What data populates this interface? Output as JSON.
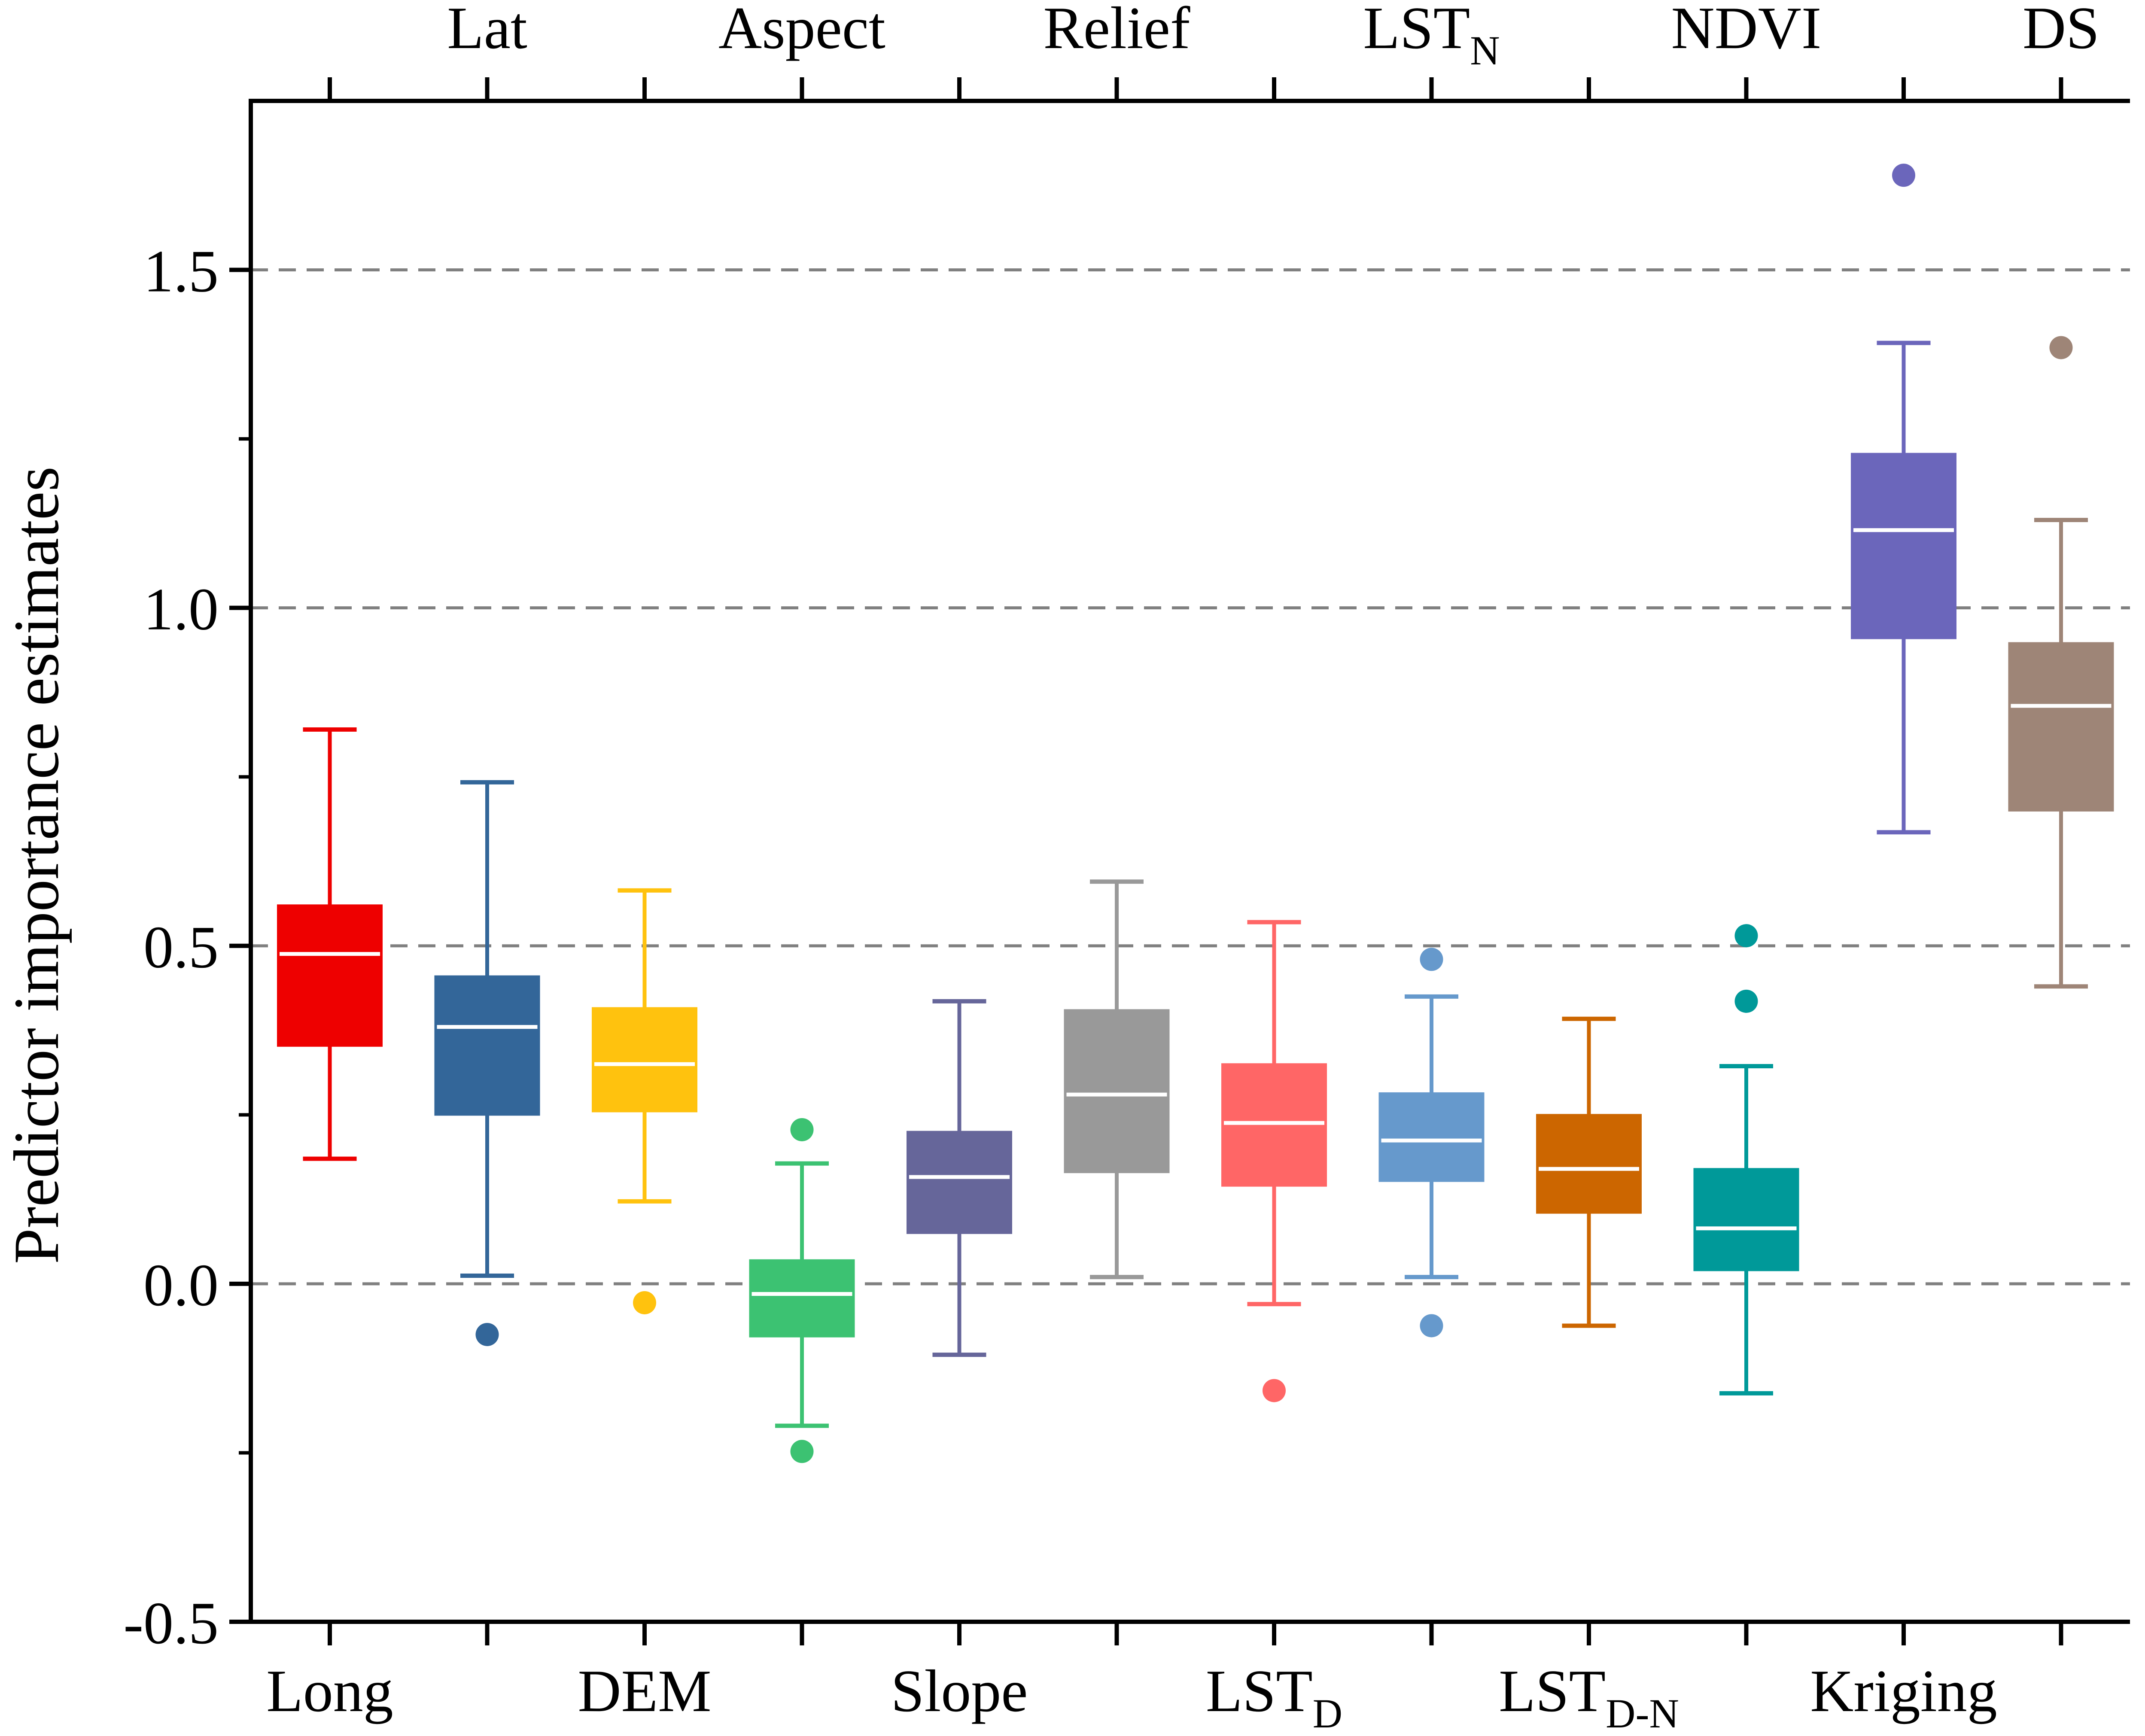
{
  "chart_data": {
    "type": "boxplot",
    "ylabel": "Predictor importance estimates",
    "ylim": [
      -0.5,
      1.75
    ],
    "yticks": [
      -0.5,
      0.0,
      0.5,
      1.0,
      1.5
    ],
    "ytick_labels": [
      "-0.5",
      "0.0",
      "0.5",
      "1.0",
      "1.5"
    ],
    "gridlines": [
      0.0,
      0.5,
      1.0,
      1.5
    ],
    "categories": [
      {
        "name": "Long",
        "base": "Long",
        "sub": "",
        "axis": "bottom",
        "color": "#EE0000",
        "whisker_low": 0.185,
        "q1": 0.352,
        "median": 0.488,
        "q3": 0.56,
        "whisker_high": 0.82,
        "outliers": []
      },
      {
        "name": "Lat",
        "base": "Lat",
        "sub": "",
        "axis": "top",
        "color": "#336699",
        "whisker_low": 0.012,
        "q1": 0.25,
        "median": 0.38,
        "q3": 0.455,
        "whisker_high": 0.742,
        "outliers": [
          -0.075
        ]
      },
      {
        "name": "DEM",
        "base": "DEM",
        "sub": "",
        "axis": "bottom",
        "color": "#FFC20E",
        "whisker_low": 0.122,
        "q1": 0.255,
        "median": 0.325,
        "q3": 0.408,
        "whisker_high": 0.582,
        "outliers": [
          -0.028
        ]
      },
      {
        "name": "Aspect",
        "base": "Aspect",
        "sub": "",
        "axis": "top",
        "color": "#3CC272",
        "whisker_low": -0.21,
        "q1": -0.078,
        "median": -0.015,
        "q3": 0.035,
        "whisker_high": 0.178,
        "outliers": [
          0.228,
          -0.248
        ]
      },
      {
        "name": "Slope",
        "base": "Slope",
        "sub": "",
        "axis": "bottom",
        "color": "#66669A",
        "whisker_low": -0.105,
        "q1": 0.075,
        "median": 0.158,
        "q3": 0.225,
        "whisker_high": 0.418,
        "outliers": []
      },
      {
        "name": "Relief",
        "base": "Relief",
        "sub": "",
        "axis": "top",
        "color": "#999999",
        "whisker_low": 0.01,
        "q1": 0.165,
        "median": 0.28,
        "q3": 0.405,
        "whisker_high": 0.595,
        "outliers": []
      },
      {
        "name": "LSTD",
        "base": "LST",
        "sub": "D",
        "axis": "bottom",
        "color": "#FF6666",
        "whisker_low": -0.03,
        "q1": 0.145,
        "median": 0.238,
        "q3": 0.325,
        "whisker_high": 0.535,
        "outliers": [
          -0.158
        ]
      },
      {
        "name": "LSTN",
        "base": "LST",
        "sub": "N",
        "axis": "top",
        "color": "#6699CC",
        "whisker_low": 0.01,
        "q1": 0.152,
        "median": 0.212,
        "q3": 0.282,
        "whisker_high": 0.425,
        "outliers": [
          0.48,
          -0.062
        ]
      },
      {
        "name": "LSTD-N",
        "base": "LST",
        "sub": "D-N",
        "axis": "bottom",
        "color": "#CC6600",
        "whisker_low": -0.062,
        "q1": 0.105,
        "median": 0.17,
        "q3": 0.25,
        "whisker_high": 0.392,
        "outliers": []
      },
      {
        "name": "NDVI",
        "base": "NDVI",
        "sub": "",
        "axis": "top",
        "color": "#009999",
        "whisker_low": -0.162,
        "q1": 0.02,
        "median": 0.082,
        "q3": 0.17,
        "whisker_high": 0.322,
        "outliers": [
          0.515,
          0.418
        ]
      },
      {
        "name": "Kriging",
        "base": "Kriging",
        "sub": "",
        "axis": "bottom",
        "color": "#6B66BB",
        "whisker_low": 0.668,
        "q1": 0.955,
        "median": 1.115,
        "q3": 1.228,
        "whisker_high": 1.392,
        "outliers": [
          1.64
        ]
      },
      {
        "name": "DS",
        "base": "DS",
        "sub": "",
        "axis": "top",
        "color": "#9E8577",
        "whisker_low": 0.44,
        "q1": 0.7,
        "median": 0.855,
        "q3": 0.948,
        "whisker_high": 1.13,
        "outliers": [
          1.385
        ]
      }
    ]
  }
}
